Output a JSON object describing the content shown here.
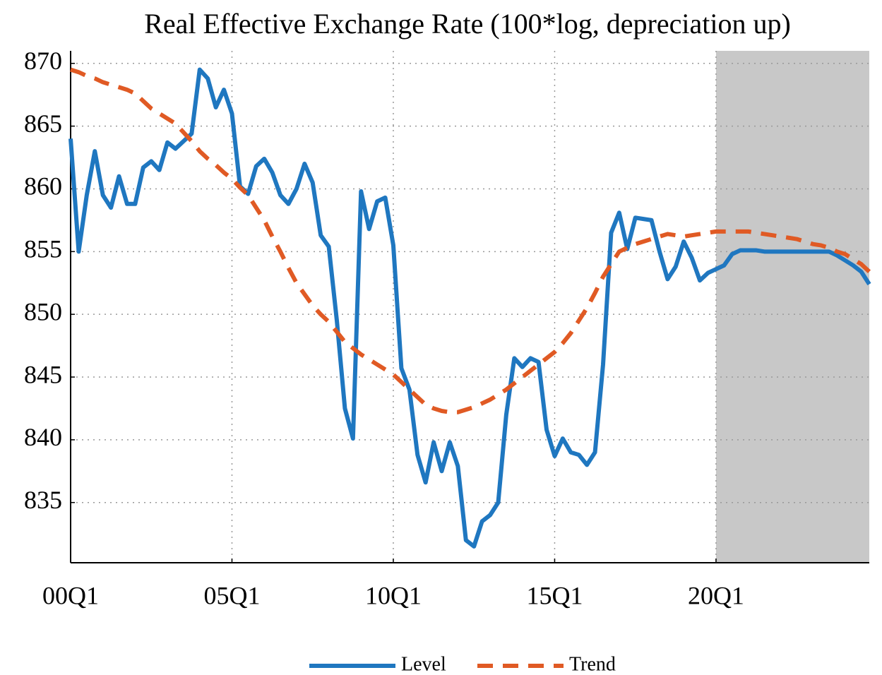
{
  "chart_data": {
    "type": "line",
    "title": "Real Effective Exchange Rate (100*log, depreciation up)",
    "categories": [
      "00Q1",
      null,
      null,
      null,
      null,
      null,
      null,
      null,
      null,
      null,
      null,
      null,
      null,
      null,
      null,
      null,
      null,
      null,
      null,
      null,
      "05Q1",
      null,
      null,
      null,
      null,
      null,
      null,
      null,
      null,
      null,
      null,
      null,
      null,
      null,
      null,
      null,
      null,
      null,
      null,
      null,
      "10Q1",
      null,
      null,
      null,
      null,
      null,
      null,
      null,
      null,
      null,
      null,
      null,
      null,
      null,
      null,
      null,
      null,
      null,
      null,
      null,
      "15Q1",
      null,
      null,
      null,
      null,
      null,
      null,
      null,
      null,
      null,
      null,
      null,
      null,
      null,
      null,
      null,
      null,
      null,
      null,
      null,
      "20Q1",
      null,
      null,
      null,
      null,
      null,
      null,
      null,
      null,
      null,
      null,
      null,
      null,
      null,
      null,
      null,
      null,
      null,
      null,
      null
    ],
    "series": [
      {
        "name": "Level",
        "color": "#1f77c0",
        "dash": false,
        "values": [
          864,
          855,
          859.5,
          863,
          859.5,
          858.5,
          861,
          858.8,
          858.8,
          861.7,
          862.2,
          861.5,
          863.7,
          863.2,
          863.8,
          864.4,
          869.5,
          868.8,
          866.5,
          867.9,
          866,
          860.2,
          859.6,
          861.8,
          862.4,
          861.3,
          859.5,
          858.8,
          860,
          862,
          860.5,
          856.3,
          855.4,
          849.5,
          842.5,
          840.1,
          859.8,
          856.8,
          859,
          859.3,
          855.5,
          845.7,
          844,
          838.8,
          836.6,
          839.8,
          837.5,
          839.8,
          837.9,
          832,
          831.5,
          833.5,
          834,
          835,
          842,
          846.5,
          845.8,
          846.5,
          846.2,
          840.8,
          838.7,
          840.1,
          839,
          838.8,
          838,
          839,
          846,
          856.5,
          858.1,
          855.2,
          857.7,
          857.6,
          857.5,
          855,
          852.8,
          853.8,
          855.8,
          854.5,
          852.7,
          853.3,
          853.6,
          853.9,
          854.8,
          855.1,
          855.1,
          855.1,
          855,
          855,
          855,
          855,
          855,
          855,
          855,
          855,
          855,
          854.7,
          854.3,
          853.9,
          853.4,
          852.4
        ]
      },
      {
        "name": "Trend",
        "color": "#e05a24",
        "dash": true,
        "values": [
          869.5,
          869.3,
          869,
          868.8,
          868.5,
          868.3,
          868.1,
          867.9,
          867.6,
          867,
          866.4,
          866,
          865.6,
          865.2,
          864.5,
          863.8,
          863,
          862.4,
          861.9,
          861.3,
          860.8,
          860.1,
          859.5,
          858.5,
          857.5,
          856.2,
          855,
          853.7,
          852.5,
          851.6,
          850.7,
          850,
          849.4,
          848.6,
          847.8,
          847.3,
          846.8,
          846.4,
          846,
          845.6,
          845.2,
          844.6,
          844,
          843.4,
          842.8,
          842.5,
          842.3,
          842.2,
          842.2,
          842.4,
          842.6,
          842.9,
          843.2,
          843.6,
          844,
          844.5,
          845,
          845.5,
          846,
          846.5,
          847,
          847.7,
          848.5,
          849.5,
          850.5,
          851.7,
          853,
          854,
          855,
          855.3,
          855.6,
          855.8,
          856,
          856.2,
          856.4,
          856.3,
          856.2,
          856.3,
          856.4,
          856.5,
          856.6,
          856.6,
          856.6,
          856.6,
          856.6,
          856.5,
          856.4,
          856.3,
          856.2,
          856.1,
          856,
          855.8,
          855.6,
          855.5,
          855.3,
          855,
          854.8,
          854.4,
          854,
          853.4
        ]
      }
    ],
    "ylim": [
      830.2,
      871
    ],
    "yticks": [
      835,
      840,
      845,
      850,
      855,
      860,
      865,
      870
    ],
    "grid": true,
    "shade_start": 80,
    "shade_color": "#c8c8c8",
    "legend": "bottom"
  }
}
